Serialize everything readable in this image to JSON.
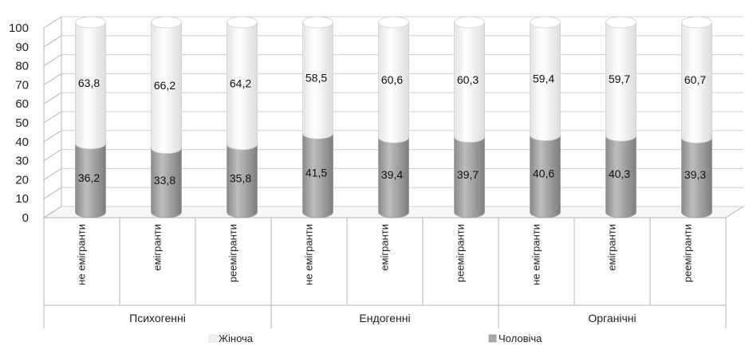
{
  "chart_data": {
    "type": "bar",
    "stacked": true,
    "style": "3d-cylinder",
    "groups": [
      {
        "label": "Психогенні",
        "categories": [
          "не емігранти",
          "емігранти",
          "реемігранти"
        ]
      },
      {
        "label": "Ендогенні",
        "categories": [
          "не емігранти",
          "емігранти",
          "реемігранти"
        ]
      },
      {
        "label": "Органічні",
        "categories": [
          "не емігранти",
          "емігранти",
          "реемігранти"
        ]
      }
    ],
    "series": [
      {
        "name": "Чоловіча",
        "color": "#a6a6a6",
        "values": [
          36.2,
          33.8,
          35.8,
          41.5,
          39.4,
          39.7,
          40.6,
          40.3,
          39.3
        ],
        "labels": [
          "36,2",
          "33,8",
          "35,8",
          "41,5",
          "39,4",
          "39,7",
          "40,6",
          "40,3",
          "39,3"
        ]
      },
      {
        "name": "Жіноча",
        "color": "#ffffff",
        "values": [
          63.8,
          66.2,
          64.2,
          58.5,
          60.6,
          60.3,
          59.4,
          59.7,
          60.7
        ],
        "labels": [
          "63,8",
          "66,2",
          "64,2",
          "58,5",
          "60,6",
          "60,3",
          "59,4",
          "59,7",
          "60,7"
        ]
      }
    ],
    "ylim": [
      0,
      100
    ],
    "yticks": [
      "0",
      "10",
      "20",
      "30",
      "40",
      "50",
      "60",
      "70",
      "80",
      "90",
      "100"
    ],
    "grid": true,
    "legend_position": "bottom"
  }
}
